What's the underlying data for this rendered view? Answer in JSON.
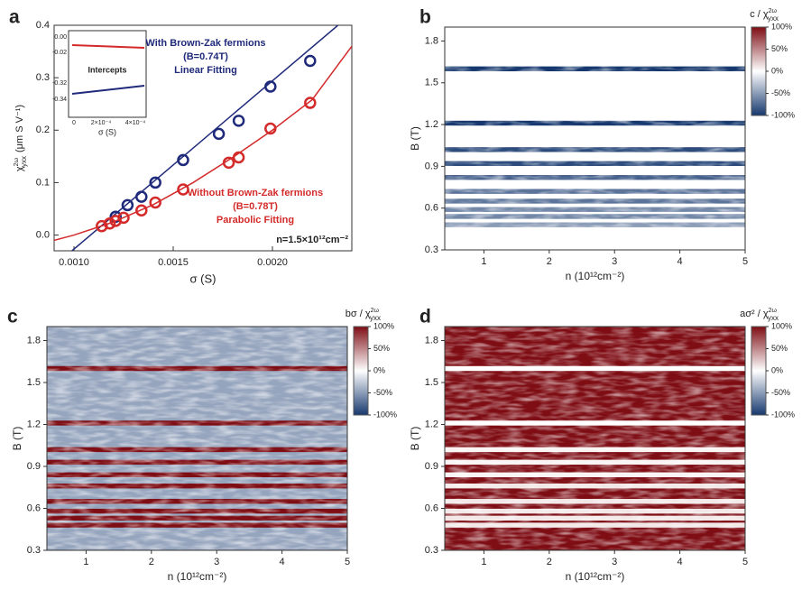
{
  "chart_data": [
    {
      "type": "scatter",
      "panel": "a",
      "xlabel": "σ (S)",
      "ylabel": {
        "main": "χ",
        "sup": "2ω",
        "sub": "yxx",
        "unit": "(μm S V⁻¹)"
      },
      "xlim": [
        0.0009,
        0.0024
      ],
      "xticks": [
        {
          "value": 0.001,
          "label": "0.0010"
        },
        {
          "value": 0.0015,
          "label": "0.0015"
        },
        {
          "value": 0.002,
          "label": "0.0020"
        }
      ],
      "ylim": [
        -0.03,
        0.4
      ],
      "yticks": [
        {
          "value": 0,
          "label": "0.0"
        },
        0.1,
        0.2,
        0.3,
        0.4
      ],
      "series": [
        {
          "name": "With Brown-Zak fermions",
          "color": "#1f2a7a",
          "x": [
            0.00121,
            0.00127,
            0.00134,
            0.00141,
            0.00155,
            0.00173,
            0.00183,
            0.00199,
            0.00219
          ],
          "values": [
            0.035,
            0.057,
            0.073,
            0.1,
            0.143,
            0.193,
            0.218,
            0.283,
            0.332
          ],
          "fit_x": [
            0.00099,
            0.00233
          ],
          "fit_y": [
            -0.03,
            0.4
          ]
        },
        {
          "name": "Without Brown-Zak fermions",
          "color": "#d42a2a",
          "x": [
            0.00114,
            0.00118,
            0.00121,
            0.00125,
            0.00134,
            0.00141,
            0.00155,
            0.00178,
            0.00183,
            0.00199,
            0.00219
          ],
          "values": [
            0.017,
            0.022,
            0.027,
            0.033,
            0.047,
            0.062,
            0.087,
            0.138,
            0.148,
            0.203,
            0.252
          ],
          "fit_x": [
            0.0009,
            0.001,
            0.0012,
            0.0014,
            0.0016,
            0.0018,
            0.002,
            0.0022,
            0.0024
          ],
          "fit_y": [
            -0.01,
            0.0,
            0.025,
            0.058,
            0.1,
            0.148,
            0.2,
            0.258,
            0.36
          ]
        }
      ],
      "annotations": {
        "blue": [
          "With Brown-Zak fermions",
          "(B=0.74T)",
          "Linear Fitting"
        ],
        "red": [
          "Without Brown-Zak fermions",
          "(B=0.78T)",
          "Parabolic Fitting"
        ],
        "density": "n=1.5×10¹²cm⁻²"
      },
      "inset": {
        "title": "Intercepts",
        "xlabel": "σ (S)",
        "yticks": [
          "0.00",
          "-0.02",
          "-0.32",
          "-0.34"
        ],
        "xticks": [
          "0",
          "2×10⁻⁴",
          "4×10⁻⁴"
        ]
      }
    },
    {
      "type": "heatmap",
      "panel": "b",
      "xlabel": "n  (10¹²cm⁻²)",
      "ylabel": "B (T)",
      "xlim": [
        0.4,
        5
      ],
      "xticks": [
        1,
        2,
        3,
        4,
        5
      ],
      "ylim": [
        0.3,
        1.9
      ],
      "yticks": [
        0.3,
        0.6,
        0.9,
        1.2,
        1.5,
        1.8
      ],
      "colorbar": {
        "main": "c / χ",
        "sup": "2ω",
        "sub": "yxx"
      },
      "clim": [
        -100,
        100
      ],
      "colors": [
        "#16386e",
        "#ffffff",
        "#7e0d14"
      ],
      "cticks": [
        {
          "value": 100,
          "label": "100%"
        },
        {
          "value": 50,
          "label": "50%"
        },
        {
          "value": 0,
          "label": "0%"
        },
        {
          "value": -50,
          "label": "-50%"
        },
        {
          "value": -100,
          "label": "-100%"
        }
      ],
      "background": 0,
      "bands": {
        "B": [
          1.6,
          1.21,
          1.02,
          0.92,
          0.82,
          0.72,
          0.65,
          0.59,
          0.54,
          0.48
        ],
        "values": [
          -100,
          -100,
          -90,
          -90,
          -80,
          -70,
          -70,
          -60,
          -60,
          -50
        ]
      }
    },
    {
      "type": "heatmap",
      "panel": "c",
      "xlabel": "n  (10¹²cm⁻²)",
      "ylabel": "B (T)",
      "xlim": [
        0.4,
        5
      ],
      "xticks": [
        1,
        2,
        3,
        4,
        5
      ],
      "ylim": [
        0.3,
        1.9
      ],
      "yticks": [
        0.3,
        0.6,
        0.9,
        1.2,
        1.5,
        1.8
      ],
      "colorbar": {
        "main": "bσ / χ",
        "sup": "2ω",
        "sub": "yxx"
      },
      "clim": [
        -100,
        100
      ],
      "colors": [
        "#16386e",
        "#ffffff",
        "#7e0d14"
      ],
      "cticks": [
        {
          "value": 100,
          "label": "100%"
        },
        {
          "value": 50,
          "label": "50%"
        },
        {
          "value": 0,
          "label": "0%"
        },
        {
          "value": -50,
          "label": "-50%"
        },
        {
          "value": -100,
          "label": "-100%"
        }
      ],
      "background": -45,
      "bands": {
        "B": [
          1.6,
          1.21,
          1.02,
          0.93,
          0.84,
          0.76,
          0.65,
          0.58,
          0.53,
          0.48
        ],
        "values": [
          100,
          100,
          100,
          100,
          100,
          100,
          100,
          100,
          100,
          100
        ]
      }
    },
    {
      "type": "heatmap",
      "panel": "d",
      "xlabel": "n  (10¹²cm⁻²)",
      "ylabel": "B (T)",
      "xlim": [
        0.4,
        5
      ],
      "xticks": [
        1,
        2,
        3,
        4,
        5
      ],
      "ylim": [
        0.3,
        1.9
      ],
      "yticks": [
        0.3,
        0.6,
        0.9,
        1.2,
        1.5,
        1.8
      ],
      "colorbar": {
        "main": "aσ² / χ",
        "sup": "2ω",
        "sub": "yxx"
      },
      "clim": [
        -100,
        100
      ],
      "colors": [
        "#16386e",
        "#ffffff",
        "#7e0d14"
      ],
      "cticks": [
        {
          "value": 100,
          "label": "100%"
        },
        {
          "value": 50,
          "label": "50%"
        },
        {
          "value": 0,
          "label": "0%"
        },
        {
          "value": -50,
          "label": "-50%"
        },
        {
          "value": -100,
          "label": "-100%"
        }
      ],
      "background": 100,
      "bands": {
        "B": [
          1.6,
          1.21,
          1.02,
          0.93,
          0.84,
          0.76,
          0.65,
          0.58,
          0.53,
          0.48
        ],
        "values": [
          0,
          0,
          5,
          5,
          5,
          10,
          10,
          10,
          10,
          10
        ]
      }
    }
  ]
}
